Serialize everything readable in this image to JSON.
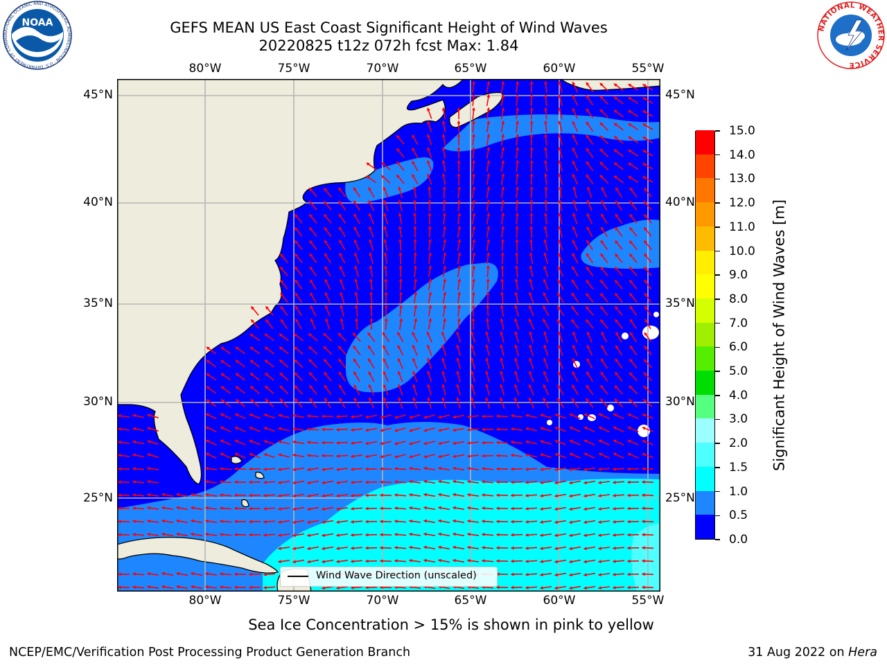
{
  "header": {
    "title_line1": "GEFS MEAN US East Coast Significant Height of Wind Waves",
    "title_line2": "20220825 t12z 072h fcst   Max: 1.84"
  },
  "map": {
    "projection": "cylindrical lat-lon",
    "lon_range": [
      -85,
      -54.5
    ],
    "lat_range": [
      20.5,
      46
    ],
    "lon_ticks": [
      "80°W",
      "75°W",
      "70°W",
      "65°W",
      "60°W",
      "55°W"
    ],
    "lat_ticks": [
      "45°N",
      "40°N",
      "35°N",
      "30°N",
      "25°N"
    ],
    "gridlines": true,
    "land_color": "#eeecdc",
    "gridline_color": "#b5b5b5",
    "arrow_color": "#ff0000",
    "arrow_field": "wind wave direction (unscaled), red arrows on a regular lat-lon grid"
  },
  "legend": {
    "label": "Wind Wave Direction (unscaled)",
    "placement": "lower center"
  },
  "colorbar": {
    "label": "Significant Height of Wind Waves [m]",
    "tick_labels": [
      "0.0",
      "0.5",
      "1.0",
      "1.5",
      "2.0",
      "3.0",
      "4.0",
      "5.0",
      "6.0",
      "7.0",
      "8.0",
      "9.0",
      "10.0",
      "11.0",
      "12.0",
      "13.0",
      "14.0",
      "15.0"
    ],
    "level_colors": [
      "#0000ff",
      "#1e86ff",
      "#00ffff",
      "#4dffff",
      "#9cffff",
      "#55ff80",
      "#00dd00",
      "#55ee00",
      "#a0ee00",
      "#d3ff00",
      "#ffff00",
      "#ffee00",
      "#ffbb00",
      "#ff9900",
      "#ff7700",
      "#ff4400",
      "#ff0000"
    ]
  },
  "notes": {
    "sea_ice": "Sea Ice Concentration > 15% is shown in pink to yellow"
  },
  "footer": {
    "left": "NCEP/EMC/Verification Post Processing Product Generation Branch",
    "right_date": "31 Aug 2022",
    "right_on": " on ",
    "right_host": "Hera"
  },
  "logos": {
    "noaa_text": "NOAA",
    "noaa_ring_text": "NATIONAL OCEANIC AND ATMOSPHERIC ADMINISTRATION · U.S. DEPARTMENT OF COMMERCE",
    "nws_ring_text": "NATIONAL WEATHER SERVICE"
  }
}
